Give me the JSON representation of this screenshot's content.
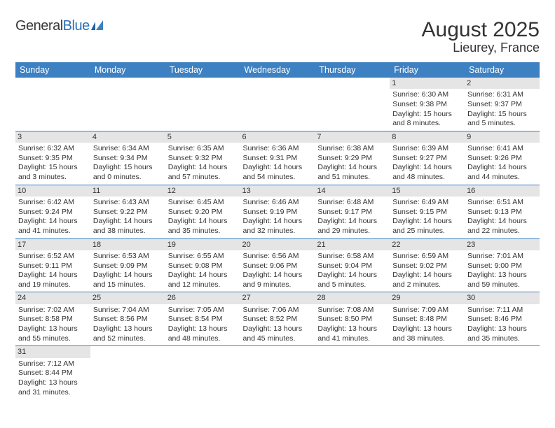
{
  "brand": {
    "part1": "General",
    "part2": "Blue"
  },
  "title": "August 2025",
  "location": "Lieurey, France",
  "colors": {
    "header_bg": "#3d81c2",
    "header_text": "#ffffff",
    "daynum_bg": "#e5e5e5",
    "row_border": "#3d81c2",
    "text": "#333333",
    "brand_gray": "#3a3a3a",
    "brand_blue": "#2f6fb0"
  },
  "day_names": [
    "Sunday",
    "Monday",
    "Tuesday",
    "Wednesday",
    "Thursday",
    "Friday",
    "Saturday"
  ],
  "weeks": [
    [
      {
        "n": "",
        "sr": "",
        "ss": "",
        "dl": ""
      },
      {
        "n": "",
        "sr": "",
        "ss": "",
        "dl": ""
      },
      {
        "n": "",
        "sr": "",
        "ss": "",
        "dl": ""
      },
      {
        "n": "",
        "sr": "",
        "ss": "",
        "dl": ""
      },
      {
        "n": "",
        "sr": "",
        "ss": "",
        "dl": ""
      },
      {
        "n": "1",
        "sr": "Sunrise: 6:30 AM",
        "ss": "Sunset: 9:38 PM",
        "dl": "Daylight: 15 hours and 8 minutes."
      },
      {
        "n": "2",
        "sr": "Sunrise: 6:31 AM",
        "ss": "Sunset: 9:37 PM",
        "dl": "Daylight: 15 hours and 5 minutes."
      }
    ],
    [
      {
        "n": "3",
        "sr": "Sunrise: 6:32 AM",
        "ss": "Sunset: 9:35 PM",
        "dl": "Daylight: 15 hours and 3 minutes."
      },
      {
        "n": "4",
        "sr": "Sunrise: 6:34 AM",
        "ss": "Sunset: 9:34 PM",
        "dl": "Daylight: 15 hours and 0 minutes."
      },
      {
        "n": "5",
        "sr": "Sunrise: 6:35 AM",
        "ss": "Sunset: 9:32 PM",
        "dl": "Daylight: 14 hours and 57 minutes."
      },
      {
        "n": "6",
        "sr": "Sunrise: 6:36 AM",
        "ss": "Sunset: 9:31 PM",
        "dl": "Daylight: 14 hours and 54 minutes."
      },
      {
        "n": "7",
        "sr": "Sunrise: 6:38 AM",
        "ss": "Sunset: 9:29 PM",
        "dl": "Daylight: 14 hours and 51 minutes."
      },
      {
        "n": "8",
        "sr": "Sunrise: 6:39 AM",
        "ss": "Sunset: 9:27 PM",
        "dl": "Daylight: 14 hours and 48 minutes."
      },
      {
        "n": "9",
        "sr": "Sunrise: 6:41 AM",
        "ss": "Sunset: 9:26 PM",
        "dl": "Daylight: 14 hours and 44 minutes."
      }
    ],
    [
      {
        "n": "10",
        "sr": "Sunrise: 6:42 AM",
        "ss": "Sunset: 9:24 PM",
        "dl": "Daylight: 14 hours and 41 minutes."
      },
      {
        "n": "11",
        "sr": "Sunrise: 6:43 AM",
        "ss": "Sunset: 9:22 PM",
        "dl": "Daylight: 14 hours and 38 minutes."
      },
      {
        "n": "12",
        "sr": "Sunrise: 6:45 AM",
        "ss": "Sunset: 9:20 PM",
        "dl": "Daylight: 14 hours and 35 minutes."
      },
      {
        "n": "13",
        "sr": "Sunrise: 6:46 AM",
        "ss": "Sunset: 9:19 PM",
        "dl": "Daylight: 14 hours and 32 minutes."
      },
      {
        "n": "14",
        "sr": "Sunrise: 6:48 AM",
        "ss": "Sunset: 9:17 PM",
        "dl": "Daylight: 14 hours and 29 minutes."
      },
      {
        "n": "15",
        "sr": "Sunrise: 6:49 AM",
        "ss": "Sunset: 9:15 PM",
        "dl": "Daylight: 14 hours and 25 minutes."
      },
      {
        "n": "16",
        "sr": "Sunrise: 6:51 AM",
        "ss": "Sunset: 9:13 PM",
        "dl": "Daylight: 14 hours and 22 minutes."
      }
    ],
    [
      {
        "n": "17",
        "sr": "Sunrise: 6:52 AM",
        "ss": "Sunset: 9:11 PM",
        "dl": "Daylight: 14 hours and 19 minutes."
      },
      {
        "n": "18",
        "sr": "Sunrise: 6:53 AM",
        "ss": "Sunset: 9:09 PM",
        "dl": "Daylight: 14 hours and 15 minutes."
      },
      {
        "n": "19",
        "sr": "Sunrise: 6:55 AM",
        "ss": "Sunset: 9:08 PM",
        "dl": "Daylight: 14 hours and 12 minutes."
      },
      {
        "n": "20",
        "sr": "Sunrise: 6:56 AM",
        "ss": "Sunset: 9:06 PM",
        "dl": "Daylight: 14 hours and 9 minutes."
      },
      {
        "n": "21",
        "sr": "Sunrise: 6:58 AM",
        "ss": "Sunset: 9:04 PM",
        "dl": "Daylight: 14 hours and 5 minutes."
      },
      {
        "n": "22",
        "sr": "Sunrise: 6:59 AM",
        "ss": "Sunset: 9:02 PM",
        "dl": "Daylight: 14 hours and 2 minutes."
      },
      {
        "n": "23",
        "sr": "Sunrise: 7:01 AM",
        "ss": "Sunset: 9:00 PM",
        "dl": "Daylight: 13 hours and 59 minutes."
      }
    ],
    [
      {
        "n": "24",
        "sr": "Sunrise: 7:02 AM",
        "ss": "Sunset: 8:58 PM",
        "dl": "Daylight: 13 hours and 55 minutes."
      },
      {
        "n": "25",
        "sr": "Sunrise: 7:04 AM",
        "ss": "Sunset: 8:56 PM",
        "dl": "Daylight: 13 hours and 52 minutes."
      },
      {
        "n": "26",
        "sr": "Sunrise: 7:05 AM",
        "ss": "Sunset: 8:54 PM",
        "dl": "Daylight: 13 hours and 48 minutes."
      },
      {
        "n": "27",
        "sr": "Sunrise: 7:06 AM",
        "ss": "Sunset: 8:52 PM",
        "dl": "Daylight: 13 hours and 45 minutes."
      },
      {
        "n": "28",
        "sr": "Sunrise: 7:08 AM",
        "ss": "Sunset: 8:50 PM",
        "dl": "Daylight: 13 hours and 41 minutes."
      },
      {
        "n": "29",
        "sr": "Sunrise: 7:09 AM",
        "ss": "Sunset: 8:48 PM",
        "dl": "Daylight: 13 hours and 38 minutes."
      },
      {
        "n": "30",
        "sr": "Sunrise: 7:11 AM",
        "ss": "Sunset: 8:46 PM",
        "dl": "Daylight: 13 hours and 35 minutes."
      }
    ],
    [
      {
        "n": "31",
        "sr": "Sunrise: 7:12 AM",
        "ss": "Sunset: 8:44 PM",
        "dl": "Daylight: 13 hours and 31 minutes."
      },
      {
        "n": "",
        "sr": "",
        "ss": "",
        "dl": ""
      },
      {
        "n": "",
        "sr": "",
        "ss": "",
        "dl": ""
      },
      {
        "n": "",
        "sr": "",
        "ss": "",
        "dl": ""
      },
      {
        "n": "",
        "sr": "",
        "ss": "",
        "dl": ""
      },
      {
        "n": "",
        "sr": "",
        "ss": "",
        "dl": ""
      },
      {
        "n": "",
        "sr": "",
        "ss": "",
        "dl": ""
      }
    ]
  ]
}
